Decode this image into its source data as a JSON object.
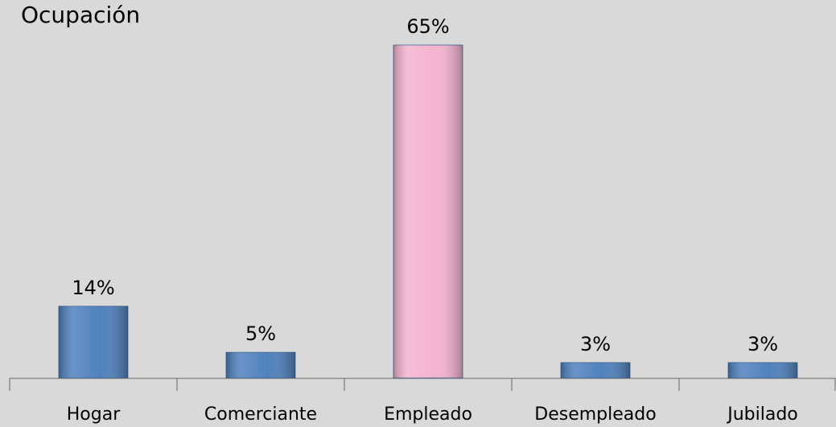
{
  "chart_data": {
    "type": "bar",
    "title": "Ocupación",
    "categories": [
      "Hogar",
      "Comerciante",
      "Empleado",
      "Desempleado",
      "Jubilado"
    ],
    "values": [
      14,
      5,
      65,
      3,
      3
    ],
    "value_labels": [
      "14%",
      "5%",
      "65%",
      "3%",
      "3%"
    ],
    "colors": [
      "#4f81bd",
      "#4f81bd",
      "#f4b3cf",
      "#4f81bd",
      "#4f81bd"
    ]
  }
}
